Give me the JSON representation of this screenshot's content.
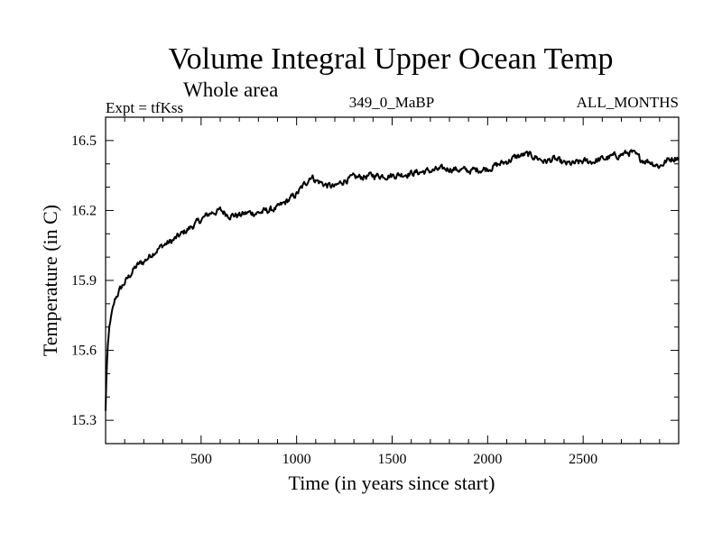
{
  "chart_data": {
    "type": "line",
    "title": "Volume Integral Upper Ocean Temp",
    "subtitle": "Whole area",
    "experiment": "Expt = tfKss",
    "period": "349_0_MaBP",
    "season": "ALL_MONTHS",
    "xlabel": "Time (in years since start)",
    "ylabel": "Temperature (in C)",
    "xlim": [
      0,
      3000
    ],
    "ylim": [
      15.2,
      16.6
    ],
    "x_ticks": [
      500,
      1000,
      1500,
      2000,
      2500
    ],
    "y_ticks": [
      15.3,
      15.6,
      15.9,
      16.2,
      16.5
    ],
    "x_minor_step": 100,
    "y_minor_step": 0.1,
    "grid": false,
    "legend": "none",
    "noise_amplitude": 0.012,
    "series": [
      {
        "name": "tfKss",
        "x": [
          0,
          5,
          10,
          20,
          30,
          40,
          50,
          75,
          100,
          125,
          150,
          175,
          200,
          250,
          300,
          350,
          400,
          450,
          500,
          550,
          600,
          650,
          700,
          750,
          800,
          850,
          900,
          950,
          1000,
          1050,
          1075,
          1100,
          1150,
          1200,
          1250,
          1300,
          1400,
          1500,
          1600,
          1700,
          1800,
          1900,
          2000,
          2100,
          2150,
          2200,
          2250,
          2300,
          2350,
          2400,
          2450,
          2500,
          2550,
          2600,
          2650,
          2700,
          2750,
          2800,
          2850,
          2900,
          2950,
          3000
        ],
        "y": [
          15.34,
          15.5,
          15.6,
          15.7,
          15.75,
          15.78,
          15.82,
          15.86,
          15.89,
          15.92,
          15.95,
          15.97,
          15.98,
          16.02,
          16.05,
          16.07,
          16.1,
          16.13,
          16.16,
          16.19,
          16.2,
          16.18,
          16.18,
          16.19,
          16.19,
          16.2,
          16.21,
          16.24,
          16.27,
          16.32,
          16.35,
          16.33,
          16.31,
          16.3,
          16.33,
          16.34,
          16.35,
          16.35,
          16.36,
          16.37,
          16.38,
          16.37,
          16.38,
          16.41,
          16.43,
          16.44,
          16.43,
          16.41,
          16.42,
          16.4,
          16.4,
          16.41,
          16.41,
          16.42,
          16.43,
          16.44,
          16.45,
          16.42,
          16.41,
          16.39,
          16.42,
          16.43
        ]
      }
    ]
  }
}
